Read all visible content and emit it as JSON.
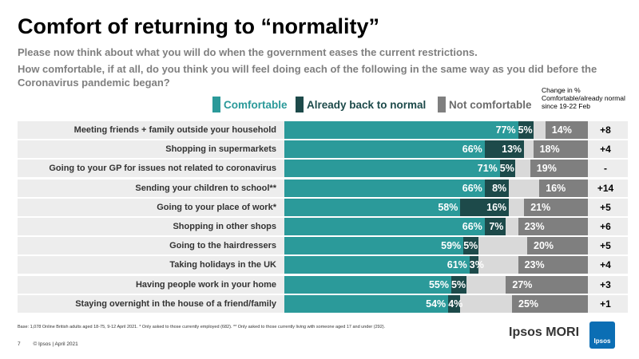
{
  "title": "Comfort of returning to “normality”",
  "subtitle_1": "Please now think about what you will do when the government eases the current restrictions.",
  "subtitle_2": "How comfortable, if at all, do you think you will feel doing each of the following in the same way as you did before the Coronavirus pandemic began?",
  "change_note": "Change in % Comfortable/already normal since 19-22 Feb",
  "base_note": "Base: 1,078 Online British adults aged 18-75, 9-12 April 2021. * Only asked to those currently employed (682). ** Only asked to those currently living with someone aged 17 and under (292).",
  "footer": {
    "page": "7",
    "copyright": "© Ipsos | April 2021"
  },
  "brand": {
    "name": "Ipsos MORI",
    "logo_text": "Ipsos"
  },
  "colors": {
    "comfortable": "#2b9a9a",
    "already": "#1d4a4a",
    "not": "#7f7f7f",
    "gap": "#d9d9d9",
    "row_bg": "#ededed"
  },
  "chart_data": {
    "type": "bar",
    "orientation": "horizontal",
    "stacked": true,
    "categories": [
      "Meeting friends + family outside your household",
      "Shopping in supermarkets",
      "Going to your GP for issues not related to coronavirus",
      "Sending your children to school**",
      "Going to your place of work*",
      "Shopping in other shops",
      "Going to the hairdressers",
      "Taking holidays in the UK",
      "Having people work in your home",
      "Staying overnight in the house of a friend/family"
    ],
    "series": [
      {
        "name": "Comfortable",
        "values": [
          77,
          66,
          71,
          66,
          58,
          66,
          59,
          61,
          55,
          54
        ]
      },
      {
        "name": "Already back to normal",
        "values": [
          5,
          13,
          5,
          8,
          16,
          7,
          5,
          3,
          5,
          4
        ]
      },
      {
        "name": "Not comfortable",
        "values": [
          14,
          18,
          19,
          16,
          21,
          23,
          20,
          23,
          27,
          25
        ]
      }
    ],
    "change": [
      "+8",
      "+4",
      "-",
      "+14",
      "+5",
      "+6",
      "+5",
      "+4",
      "+3",
      "+1"
    ],
    "value_suffix": "%",
    "legend_position": "top",
    "xlim": [
      0,
      100
    ]
  }
}
